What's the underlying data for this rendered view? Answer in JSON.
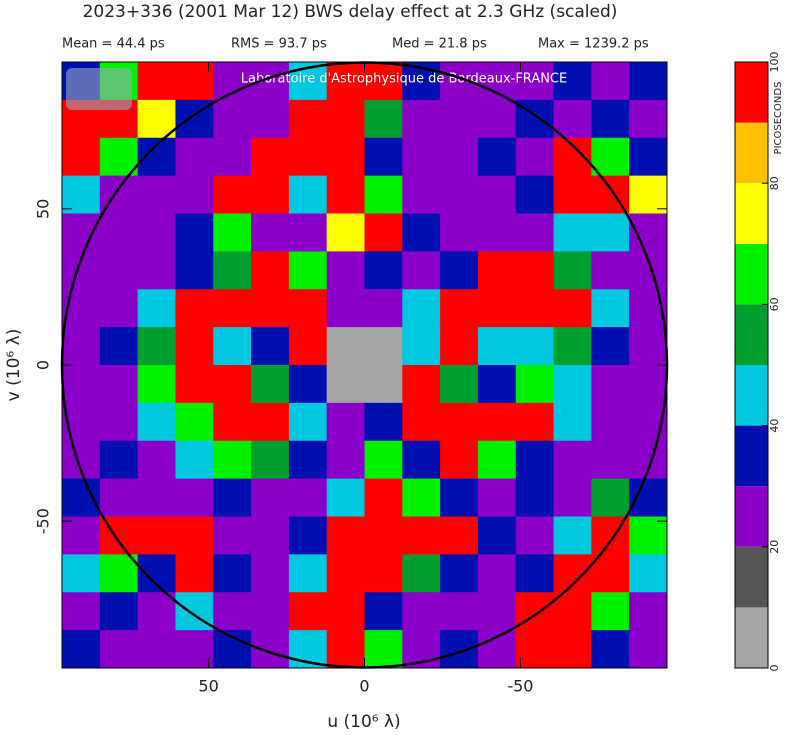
{
  "chart_data": {
    "type": "heatmap",
    "title": "2023+336  (2001 Mar 12)    BWS delay effect at  2.3 GHz (scaled)",
    "stats": [
      "Mean =   44.4 ps",
      "RMS =   93.7 ps",
      "Med =   21.8 ps",
      "Max = 1239.2 ps"
    ],
    "watermark": "Laboratoire d'Astrophysique de Bordeaux-FRANCE",
    "xlabel": "u  (10⁶ λ)",
    "ylabel": "v  (10⁶ λ)",
    "xlim": [
      97,
      -97
    ],
    "ylim": [
      -97,
      97
    ],
    "xticks": [
      50,
      0,
      -50
    ],
    "yticks": [
      50,
      0,
      -50
    ],
    "colorbar_label": "PICOSECONDS",
    "zlim": [
      0,
      100
    ],
    "zticks": [
      0,
      20,
      40,
      60,
      80,
      100
    ],
    "colorscale": [
      "#a6a6a6",
      "#555555",
      "#8a00c8",
      "#0010b0",
      "#00c8e0",
      "#00a030",
      "#00f000",
      "#ffff00",
      "#ffc000",
      "#ff0000"
    ],
    "z": [
      [
        30,
        60,
        95,
        95,
        25,
        20,
        45,
        95,
        95,
        30,
        20,
        25,
        20,
        30,
        25,
        30
      ],
      [
        95,
        95,
        70,
        30,
        20,
        25,
        95,
        95,
        50,
        25,
        20,
        25,
        30,
        25,
        30,
        25
      ],
      [
        95,
        60,
        30,
        20,
        25,
        95,
        95,
        95,
        30,
        20,
        25,
        30,
        25,
        95,
        60,
        30
      ],
      [
        40,
        25,
        20,
        25,
        95,
        95,
        40,
        95,
        60,
        25,
        20,
        25,
        30,
        95,
        95,
        70
      ],
      [
        25,
        20,
        25,
        30,
        60,
        25,
        25,
        70,
        95,
        30,
        20,
        25,
        25,
        40,
        40,
        25
      ],
      [
        20,
        25,
        25,
        30,
        50,
        95,
        60,
        25,
        30,
        25,
        30,
        95,
        95,
        50,
        25,
        20
      ],
      [
        25,
        25,
        40,
        95,
        95,
        95,
        95,
        20,
        25,
        40,
        95,
        95,
        95,
        95,
        40,
        25
      ],
      [
        25,
        30,
        50,
        95,
        40,
        30,
        95,
        5,
        5,
        40,
        95,
        40,
        40,
        50,
        30,
        25
      ],
      [
        25,
        25,
        60,
        95,
        95,
        50,
        30,
        5,
        5,
        95,
        50,
        30,
        60,
        40,
        25,
        20
      ],
      [
        20,
        25,
        40,
        60,
        95,
        95,
        40,
        25,
        30,
        95,
        95,
        95,
        95,
        40,
        25,
        25
      ],
      [
        25,
        30,
        25,
        40,
        60,
        50,
        30,
        25,
        60,
        30,
        95,
        60,
        30,
        25,
        20,
        25
      ],
      [
        30,
        25,
        20,
        25,
        30,
        25,
        25,
        40,
        95,
        60,
        30,
        25,
        30,
        25,
        50,
        30
      ],
      [
        25,
        95,
        95,
        95,
        25,
        20,
        30,
        95,
        95,
        95,
        95,
        30,
        25,
        40,
        95,
        60
      ],
      [
        40,
        60,
        30,
        95,
        30,
        25,
        40,
        95,
        95,
        50,
        30,
        25,
        30,
        95,
        95,
        40
      ],
      [
        25,
        30,
        25,
        40,
        25,
        20,
        95,
        95,
        30,
        25,
        20,
        25,
        95,
        95,
        60,
        25
      ],
      [
        30,
        25,
        20,
        25,
        30,
        25,
        40,
        95,
        60,
        25,
        30,
        25,
        95,
        95,
        30,
        25
      ]
    ]
  }
}
